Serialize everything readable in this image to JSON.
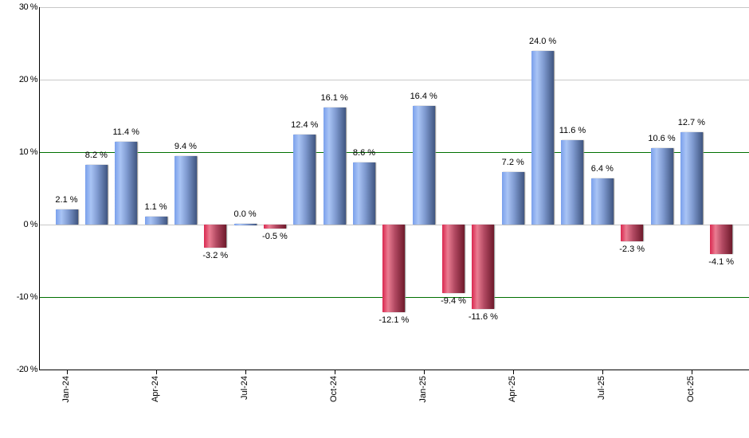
{
  "chart_data": {
    "type": "bar",
    "title": "",
    "xlabel": "",
    "ylabel": "",
    "ylim": [
      -20,
      30
    ],
    "y_ticks": [
      "30 %",
      "20 %",
      "10 %",
      "0 %",
      "-10 %",
      "-20 %"
    ],
    "x_tick_labels": [
      "Jan-24",
      "Apr-24",
      "Jul-24",
      "Oct-24",
      "Jan-25",
      "Apr-25",
      "Jul-25",
      "Oct-25"
    ],
    "categories": [
      "Jan-24",
      "Feb-24",
      "Mar-24",
      "Apr-24",
      "May-24",
      "Jun-24",
      "Jul-24",
      "Aug-24",
      "Sep-24",
      "Oct-24",
      "Nov-24",
      "Dec-24",
      "Jan-25",
      "Feb-25",
      "Mar-25",
      "Apr-25",
      "May-25",
      "Jun-25",
      "Jul-25",
      "Aug-25",
      "Sep-25",
      "Oct-25",
      "Nov-25"
    ],
    "values": [
      2.1,
      8.2,
      11.4,
      1.1,
      9.4,
      -3.2,
      0.0,
      -0.5,
      12.4,
      16.1,
      8.6,
      -12.1,
      16.4,
      -9.4,
      -11.6,
      7.2,
      24.0,
      11.6,
      6.4,
      -2.3,
      10.6,
      12.7,
      -4.1
    ],
    "value_labels": [
      "2.1 %",
      "8.2 %",
      "11.4 %",
      "1.1 %",
      "9.4 %",
      "-3.2 %",
      "0.0 %",
      "-0.5 %",
      "12.4 %",
      "16.1 %",
      "8.6 %",
      "-12.1 %",
      "16.4 %",
      "-9.4 %",
      "-11.6 %",
      "7.2 %",
      "24.0 %",
      "11.6 %",
      "6.4 %",
      "-2.3 %",
      "10.6 %",
      "12.7 %",
      "-4.1 %"
    ],
    "reference_lines": [
      10,
      -10
    ],
    "grid": true,
    "legend": null,
    "colors": {
      "positive": "#7f9ad0",
      "negative": "#c0395a",
      "reference_line": "#007000",
      "gridline": "#c8c8c8"
    }
  }
}
